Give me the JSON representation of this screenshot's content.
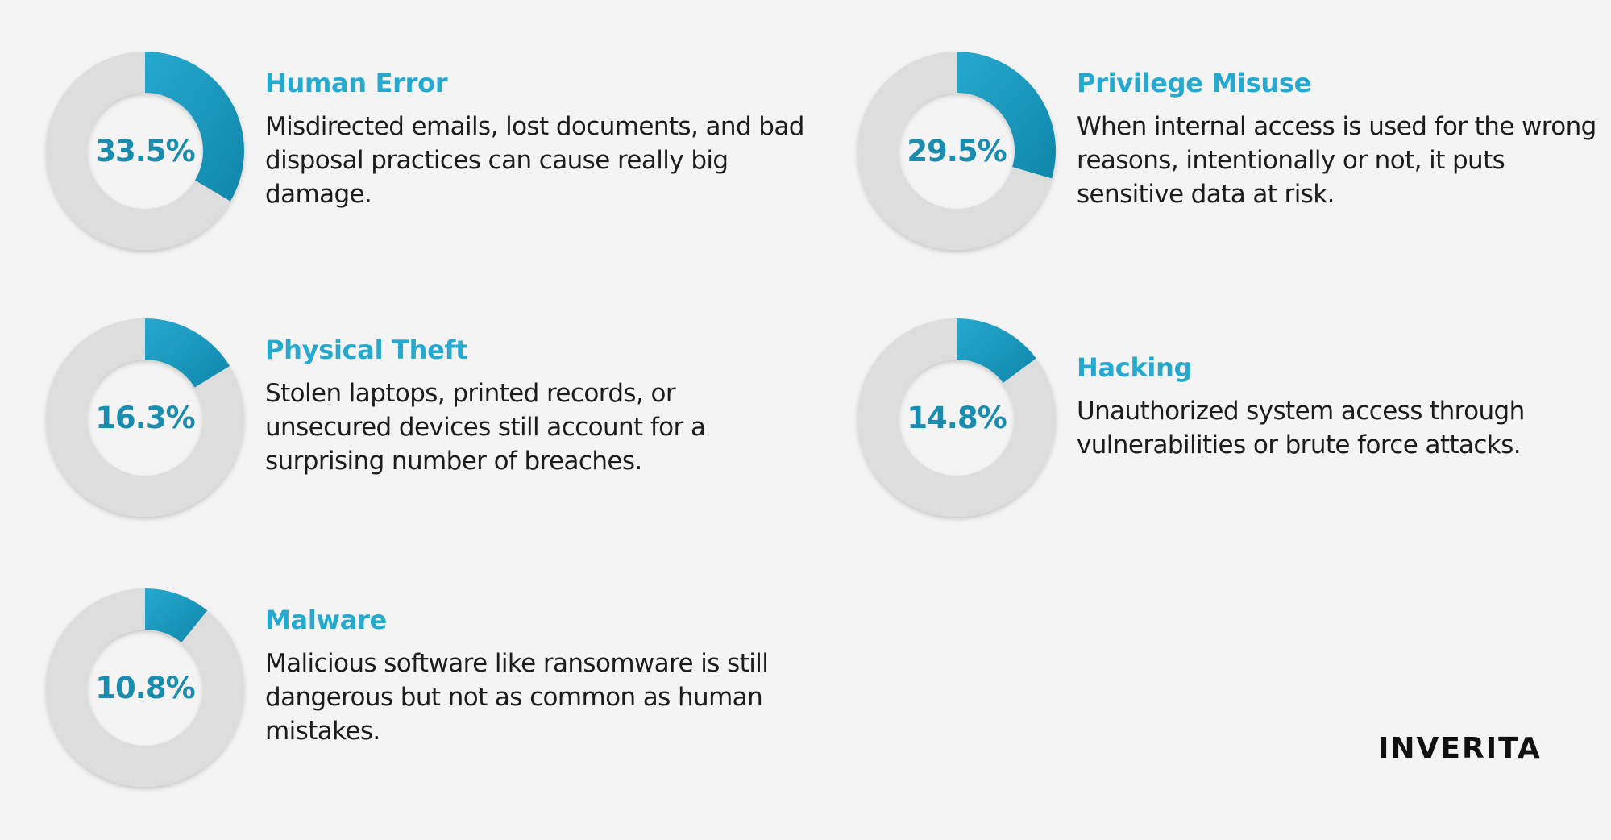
{
  "colors": {
    "accent": "#26a9cf",
    "accent_dark": "#0f86aa",
    "track": "#dddddd",
    "background": "#f4f4f4"
  },
  "chart_data": [
    {
      "type": "pie",
      "label": "33.5%",
      "value": 33.5,
      "title": "Human Error",
      "description": "Misdirected emails, lost documents, and bad disposal practices can cause really big damage."
    },
    {
      "type": "pie",
      "label": "29.5%",
      "value": 29.5,
      "title": "Privilege Misuse",
      "description": "When internal access is used for the wrong reasons, intentionally or not, it puts sensitive data at risk."
    },
    {
      "type": "pie",
      "label": "16.3%",
      "value": 16.3,
      "title": "Physical Theft",
      "description": "Stolen laptops, printed records, or unsecured devices still account for a surprising number of breaches."
    },
    {
      "type": "pie",
      "label": "14.8%",
      "value": 14.8,
      "title": "Hacking",
      "description": "Unauthorized system access through vulnerabilities or brute force attacks."
    },
    {
      "type": "pie",
      "label": "10.8%",
      "value": 10.8,
      "title": "Malware",
      "description": "Malicious software like ransomware is still dangerous but not as common as human mistakes."
    }
  ],
  "brand": {
    "logo_text": "INVERITA"
  }
}
